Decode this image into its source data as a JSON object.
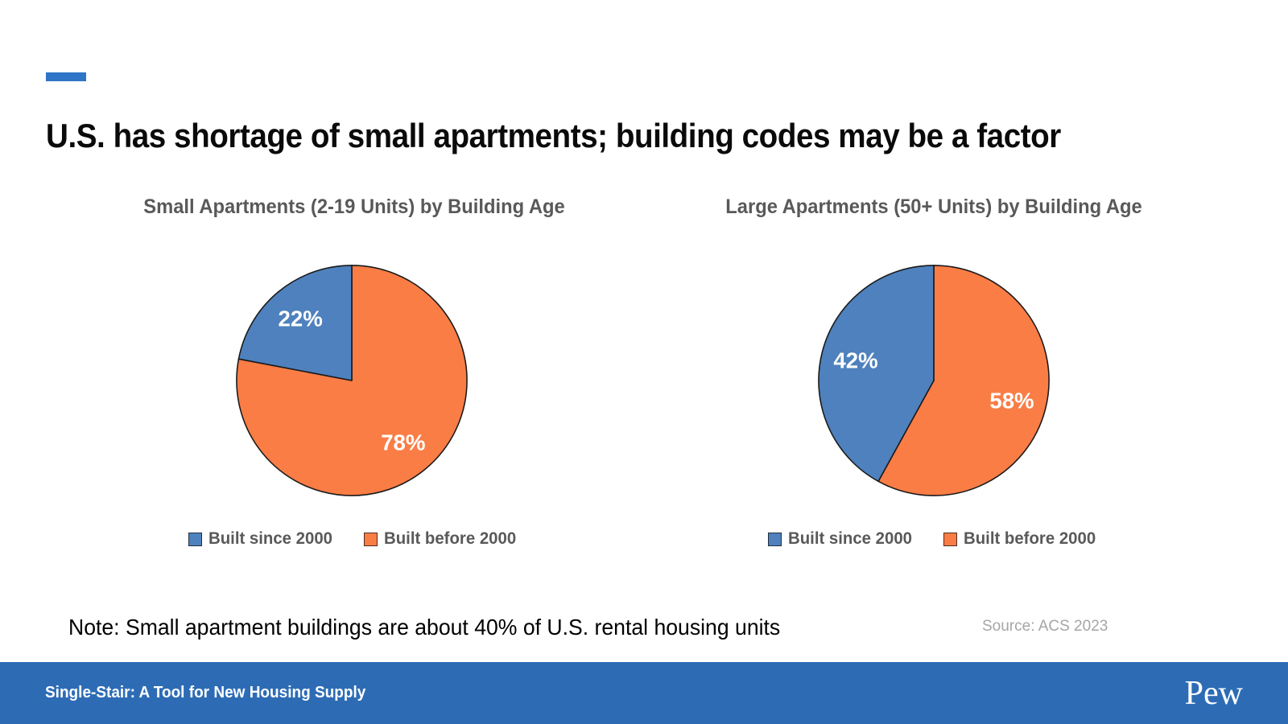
{
  "slide": {
    "title": "U.S. has shortage of small apartments; building codes may be a factor",
    "note": "Note: Small apartment buildings are about 40% of U.S. rental housing units",
    "source": "Source: ACS 2023",
    "footer": {
      "label": "Single-Stair: A Tool for New Housing Supply",
      "logo": "Pew"
    },
    "colors": {
      "accent_dash": "#2E75C8",
      "footer_bg": "#2D6CB5",
      "title_text": "#0A0A0A",
      "chart_title_text": "#595959",
      "source_text": "#A6A6A6",
      "pie_outline": "#1A1A1A"
    }
  },
  "chart_data": [
    {
      "type": "pie",
      "title": "Small Apartments (2-19 Units) by Building Age",
      "value_suffix": "%",
      "legend_position": "bottom",
      "start_angle_deg": 0,
      "direction": "clockwise-from-top-last-series-first",
      "slices": [
        {
          "label": "Built since 2000",
          "value": 22,
          "color": "#4E81BD"
        },
        {
          "label": "Built before 2000",
          "value": 78,
          "color": "#FA7D46"
        }
      ]
    },
    {
      "type": "pie",
      "title": "Large Apartments (50+ Units) by Building Age",
      "value_suffix": "%",
      "legend_position": "bottom",
      "start_angle_deg": 0,
      "direction": "clockwise-from-top-last-series-first",
      "slices": [
        {
          "label": "Built since 2000",
          "value": 42,
          "color": "#4E81BD"
        },
        {
          "label": "Built before 2000",
          "value": 58,
          "color": "#FA7D46"
        }
      ]
    }
  ]
}
